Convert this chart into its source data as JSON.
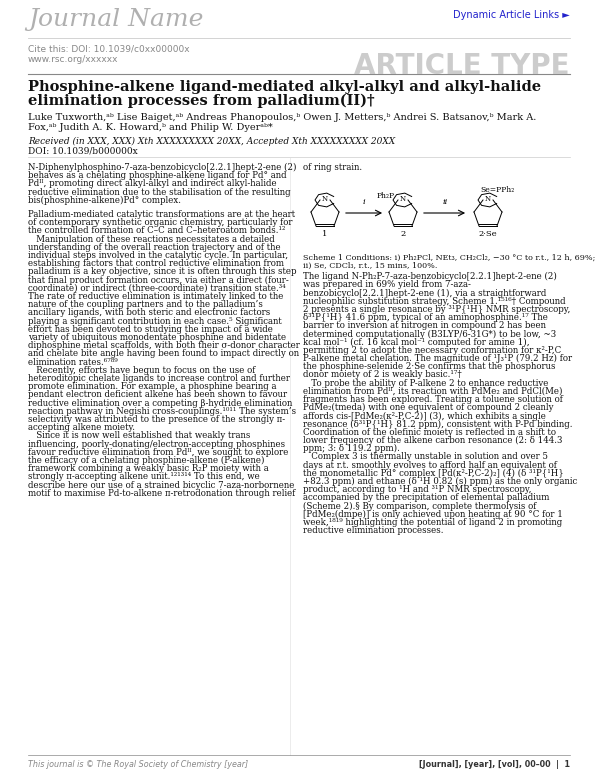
{
  "journal_name": "Journal Name",
  "dynamic_links": "Dynamic Article Links ►",
  "cite_this": "Cite this: DOI: 10.1039/c0xx00000x",
  "www": "www.rsc.org/xxxxxx",
  "article_type": "ARTICLE TYPE",
  "title_line1": "Phosphine-alkene ligand-mediated alkyl-alkyl and alkyl-halide",
  "title_line2": "elimination processes from palladium(II)†",
  "authors_line1": "Luke Tuxworth,ᵃᵇ Lise Baiget,ᵃᵇ Andreas Phanopoulos,ᵇ Owen J. Metters,ᵇ Andrei S. Batsanov,ᵇ Mark A.",
  "authors_line2": "Fox,ᵃᵇ Judith A. K. Howard,ᵇ and Philip W. Dyerᵃᵇ*",
  "received": "Received (in XXX, XXX) Xth XXXXXXXXX 20XX, Accepted Xth XXXXXXXXX 20XX",
  "doi_line": "DOI: 10.1039/b000000x",
  "abstract_lines": [
    "N-Diphenylphosphino-7-aza-benzobicyclo[2.2.1]hept-2-ene (2)",
    "behaves as a chelating phosphine-alkene ligand for Pd° and",
    "Pdᴵᴵ, promoting direct alkyl-alkyl and indirect alkyl-halide",
    "reductive elimination due to the stabilisation of the resulting",
    "bis(phosphine-alkene)Pd° complex."
  ],
  "of_ring_strain": "of ring strain.",
  "scheme1_cap1": "Scheme 1 Conditions: i) Ph₂PCl, NEt₃, CH₂Cl₂, −30 °C to r.t., 12 h, 69%;",
  "scheme1_cap2": "ii) Se, CDCl₃, r.t., 15 mins, 100%.",
  "left_body": [
    "Palladium-mediated catalytic transformations are at the heart",
    "of contemporary synthetic organic chemistry, particularly for",
    "the controlled formation of C–C and C–heteroatom bonds.¹²",
    "   Manipulation of these reactions necessitates a detailed",
    "understanding of the overall reaction trajectory and of the",
    "individual steps involved in the catalytic cycle. In particular,",
    "establishing factors that control reductive elimination from",
    "palladium is a key objective, since it is often through this step",
    "that final product formation occurs, via either a direct (four-",
    "coordinate) or indirect (three-coordinate) transition state.³⁴",
    "The rate of reductive elimination is intimately linked to the",
    "nature of the coupling partners and to the palladium’s",
    "ancillary ligands, with both steric and electronic factors",
    "playing a significant contribution in each case.⁵ Significant",
    "effort has been devoted to studying the impact of a wide",
    "variety of ubiquitous monodentate phosphine and bidentate",
    "diphosphine metal scaffolds, with both their σ-donor character",
    "and chelate bite angle having been found to impact directly on",
    "elimination rates.⁶⁷⁸⁹",
    "   Recently, efforts have begun to focus on the use of",
    "heteroditopic chelate ligands to increase control and further",
    "promote elimination. For example, a phosphine bearing a",
    "pendant electron deficient alkene has been shown to favour",
    "reductive elimination over a competing β-hydride elimination",
    "reaction pathway in Negishi cross-couplings.¹⁰¹¹ The system’s",
    "selectivity was attributed to the presence of the strongly π-",
    "accepting alkene moiety.",
    "   Since it is now well established that weakly trans",
    "influencing, poorly-donating/electron-accepting phosphines",
    "favour reductive elimination from Pdᴵᴵ, we sought to explore",
    "the efficacy of a chelating phosphine-alkene (P-alkene)",
    "framework combining a weakly basic R₂P moiety with a",
    "strongly π-accepting alkene unit.¹²¹³¹⁴ To this end, we",
    "describe here our use of a strained bicyclic 7-aza-norbornene",
    "motif to maximise Pd-to-alkene π-retrodonation through relief"
  ],
  "right_body": [
    "The ligand N-Ph₂P-7-aza-benzobicyclo[2.2.1]hept-2-ene (2)",
    "was prepared in 69% yield from 7-aza-",
    "benzobicyclo[2.2.1]hept-2-ene (1), via a straightforward",
    "nucleophilic substitution strategy, Scheme 1.¹⁵¹⁶† Compound",
    "2 presents a single resonance by ³¹P{¹H} NMR spectroscopy,",
    "δ³¹P{¹H} 41.6 ppm, typical of an aminophosphine.¹⁷ The",
    "barrier to inversion at nitrogen in compound 2 has been",
    "determined computationally (B3LYP/6-31G*) to be low, ~3",
    "kcal mol⁻¹ (cf. 16 kcal mol⁻¹ computed for amine 1),",
    "permitting 2 to adopt the necessary conformation for κ²-P,C",
    "P-alkene metal chelation. The magnitude of ¹J₃¹P (79.2 Hz) for",
    "the phosphine-selenide 2·Se confirms that the phosphorus",
    "donor moiety of 2 is weakly basic.¹⁷†",
    "   To probe the ability of P-alkene 2 to enhance reductive",
    "elimination from Pdᴵᴵ, its reaction with PdMe₂ and PdCl(Me)",
    "fragments has been explored. Treating a toluene solution of",
    "PdMe₂(tmeda) with one equivalent of compound 2 cleanly",
    "affords cis-[PdMe₂(κ²-P,C-2)] (3), which exhibits a single",
    "resonance (δ³¹P{¹H} 81.2 ppm), consistent with P-Pd binding.",
    "Coordination of the olefinic moiety is reflected in a shift to",
    "lower frequency of the alkene carbon resonance (2: δ 144.3",
    "ppm; 3: δ 119.2 ppm).",
    "   Complex 3 is thermally unstable in solution and over 5",
    "days at r.t. smoothly evolves to afford half an equivalent of",
    "the monometallic Pd° complex [Pd(κ²-P,C-2)₂] (4) (δ ³¹P{¹H}",
    "+82.3 ppm) and ethane (δ ¹H 0.82 (s) ppm) as the only organic",
    "product, according to ¹H and ³¹P NMR spectroscopy,",
    "accompanied by the precipitation of elemental palladium",
    "(Scheme 2).§ By comparison, complete thermolysis of",
    "[PdMe₂(dmpe)] is only achieved upon heating at 90 °C for 1",
    "week,¹⁸¹⁹ highlighting the potential of ligand 2 in promoting",
    "reductive elimination processes."
  ],
  "footer_left": "This journal is © The Royal Society of Chemistry [year]",
  "footer_right": "[Journal], [year], [vol], 00–00  |  1"
}
